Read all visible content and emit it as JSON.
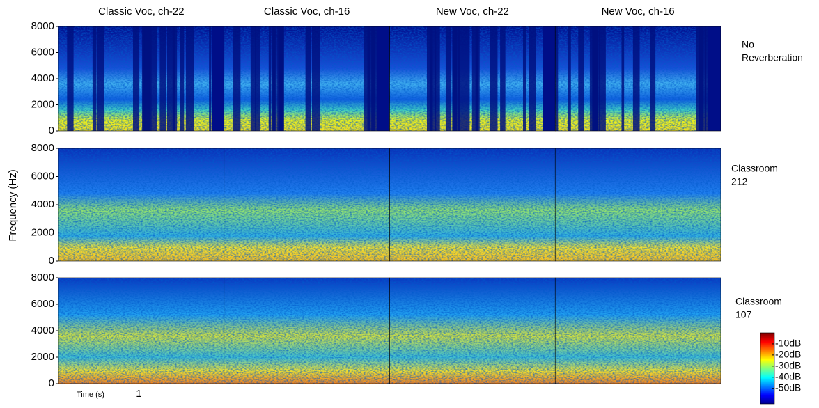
{
  "chart_data": {
    "type": "spectrogram",
    "columns": [
      "Classic Voc, ch-22",
      "Classic Voc, ch-16",
      "New Voc, ch-22",
      "New Voc, ch-16"
    ],
    "rows": [
      [
        "No",
        "Reverberation"
      ],
      [
        "Classroom",
        "212"
      ],
      [
        "Classroom",
        "107"
      ]
    ],
    "ylabel": "Frequency (Hz)",
    "ylim": [
      0,
      8000
    ],
    "yticks": [
      0,
      2000,
      4000,
      6000,
      8000
    ],
    "xlabel": "Time (s)",
    "xlim": [
      0,
      2.06
    ],
    "xticks": [
      1
    ],
    "colorbar": {
      "lim": [
        -64,
        0
      ],
      "ticks": [
        {
          "value": -10,
          "label": "-10dB"
        },
        {
          "value": -20,
          "label": "-20dB"
        },
        {
          "value": -30,
          "label": "-30dB"
        },
        {
          "value": -40,
          "label": "-40dB"
        },
        {
          "value": -50,
          "label": "-50dB"
        }
      ]
    }
  }
}
